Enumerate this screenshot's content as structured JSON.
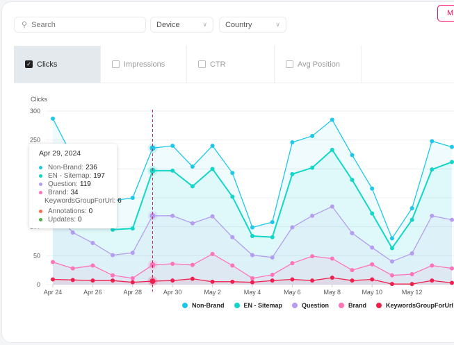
{
  "filters": {
    "search_placeholder": "Search",
    "device": "Device",
    "country": "Country",
    "action_button": "M"
  },
  "tabs": [
    {
      "label": "Clicks",
      "checked": true
    },
    {
      "label": "Impressions",
      "checked": false
    },
    {
      "label": "CTR",
      "checked": false
    },
    {
      "label": "Avg Position",
      "checked": false
    }
  ],
  "tooltip": {
    "date": "Apr 29, 2024",
    "rows": [
      {
        "label": "Non-Brand:",
        "value": "236",
        "color": "#1ec8e8"
      },
      {
        "label": "EN - Sitemap:",
        "value": "197",
        "color": "#12d6c8"
      },
      {
        "label": "Question:",
        "value": "119",
        "color": "#b49cf0"
      },
      {
        "label": "Brand:",
        "value": "34",
        "color": "#ff73b8"
      },
      {
        "label": "KeywordsGroupForUrl:",
        "value": "6",
        "color": "#f0204e"
      },
      {
        "label": "Annotations:",
        "value": "0",
        "color": "#ff6a4a"
      },
      {
        "label": "Updates:",
        "value": "0",
        "color": "#4caf50"
      }
    ]
  },
  "chart_data": {
    "type": "line",
    "ylabel": "Clicks",
    "ylim": [
      0,
      300
    ],
    "yticks": [
      0,
      50,
      100,
      150,
      200,
      250,
      300
    ],
    "grid": true,
    "legend_placement": "bottom",
    "x": [
      "Apr 24",
      "Apr 25",
      "Apr 26",
      "Apr 27",
      "Apr 28",
      "Apr 29",
      "Apr 30",
      "May 1",
      "May 2",
      "May 3",
      "May 4",
      "May 5",
      "May 6",
      "May 7",
      "May 8",
      "May 9",
      "May 10",
      "May 11",
      "May 12",
      "May 13",
      "May 14"
    ],
    "xtick_labels": [
      "Apr 24",
      "Apr 26",
      "Apr 28",
      "Apr 30",
      "May 2",
      "May 4",
      "May 6",
      "May 8",
      "May 10",
      "May 12"
    ],
    "highlight_x": "Apr 29",
    "series": [
      {
        "name": "Non-Brand",
        "color": "#1ec8e8",
        "values": [
          287,
          220,
          180,
          145,
          150,
          236,
          240,
          204,
          240,
          193,
          99,
          108,
          246,
          257,
          285,
          224,
          166,
          80,
          132,
          248,
          238
        ]
      },
      {
        "name": "EN - Sitemap",
        "color": "#12d6c8",
        "values": [
          240,
          190,
          150,
          95,
          97,
          197,
          197,
          170,
          200,
          152,
          84,
          82,
          191,
          202,
          233,
          181,
          123,
          63,
          112,
          199,
          212
        ]
      },
      {
        "name": "Question",
        "color": "#b49cf0",
        "values": [
          130,
          90,
          72,
          51,
          55,
          119,
          119,
          106,
          118,
          82,
          51,
          47,
          99,
          119,
          135,
          89,
          64,
          40,
          54,
          119,
          112
        ]
      },
      {
        "name": "Brand",
        "color": "#ff73b8",
        "values": [
          39,
          28,
          33,
          16,
          11,
          34,
          36,
          34,
          53,
          33,
          11,
          17,
          37,
          49,
          45,
          25,
          35,
          16,
          18,
          33,
          28
        ]
      },
      {
        "name": "KeywordsGroupForUrl",
        "color": "#f0204e",
        "values": [
          9,
          8,
          7,
          7,
          4,
          6,
          7,
          10,
          5,
          5,
          4,
          7,
          9,
          7,
          12,
          7,
          9,
          1,
          1,
          7,
          3
        ]
      }
    ]
  }
}
